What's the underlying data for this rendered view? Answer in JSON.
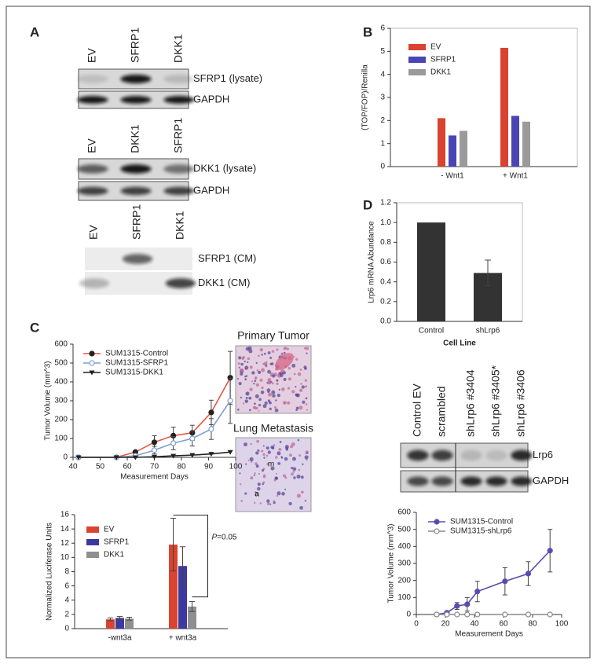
{
  "panel_labels": [
    "A",
    "B",
    "C",
    "D"
  ],
  "blots": [
    {
      "lanes": [
        "EV",
        "SFRP1",
        "DKK1"
      ],
      "rows": [
        "SFRP1 (lysate)",
        "GAPDH"
      ]
    },
    {
      "lanes": [
        "EV",
        "DKK1",
        "SFRP1"
      ],
      "rows": [
        "DKK1 (lysate)",
        "GAPDH"
      ]
    },
    {
      "lanes": [
        "EV",
        "SFRP1",
        "DKK1"
      ],
      "rows": [
        "SFRP1 (CM)",
        "DKK1 (CM)"
      ]
    },
    {
      "lanes": [
        "Control EV",
        "scrambled",
        "shLrp6 #3404",
        "shLrp6 #3405*",
        "shLrp6 #3406"
      ],
      "rows": [
        "Lrp6",
        "GAPDH"
      ]
    }
  ],
  "histology": [
    {
      "title": "Primary Tumor"
    },
    {
      "title": "Lung Metastasis",
      "labels": [
        "m",
        "a"
      ]
    }
  ],
  "chart_data": [
    {
      "type": "bar",
      "ylabel": "(TOP/FOP)/Renilla",
      "categories": [
        "- Wnt1",
        "+ Wnt1"
      ],
      "series": [
        {
          "name": "EV",
          "color": "#d9432f",
          "values": [
            2.1,
            5.15
          ]
        },
        {
          "name": "SFRP1",
          "color": "#4a45b5",
          "values": [
            1.35,
            2.2
          ]
        },
        {
          "name": "DKK1",
          "color": "#9a9a9a",
          "values": [
            1.55,
            1.95
          ]
        }
      ],
      "ylim": [
        0,
        6
      ],
      "yticks": [
        0,
        1,
        2,
        3,
        4,
        5,
        6
      ]
    },
    {
      "type": "bar",
      "ylabel": "Lrp6 mRNA Abundance",
      "xlabel": "Cell Line",
      "categories": [
        "Control",
        "shLrp6"
      ],
      "values": [
        1.0,
        0.49
      ],
      "errors": [
        null,
        0.13
      ],
      "color": "#333333",
      "ylim": [
        0,
        1.2
      ],
      "yticks": [
        {
          "value": 0,
          "label": "0.0"
        },
        0.2,
        0.4,
        0.6,
        0.8,
        {
          "value": 1,
          "label": "1.0"
        },
        1.2
      ]
    },
    {
      "type": "line",
      "ylabel": "Tumor Volume (mm^3)",
      "xlabel": "Measurement Days",
      "x": [
        42,
        56,
        63,
        70,
        77,
        84,
        91,
        98
      ],
      "series": [
        {
          "name": "SUM1315-Control",
          "color": "#e8543f",
          "marker": "filled",
          "values": [
            0,
            0,
            28,
            80,
            115,
            130,
            238,
            422
          ],
          "errors": [
            0,
            0,
            8,
            35,
            45,
            40,
            65,
            140
          ]
        },
        {
          "name": "SUM1315-SFRP1",
          "color": "#7f9fd0",
          "marker": "open",
          "values": [
            0,
            0,
            8,
            38,
            75,
            100,
            150,
            300
          ],
          "errors": [
            0,
            0,
            5,
            20,
            35,
            40,
            55,
            120
          ]
        },
        {
          "name": "SUM1315-DKK1",
          "color": "#222222",
          "marker": "triangle",
          "values": [
            0,
            0,
            0,
            3,
            8,
            12,
            18,
            28
          ]
        }
      ],
      "xlim": [
        40,
        100
      ],
      "xticks": [
        40,
        50,
        60,
        70,
        80,
        90,
        100
      ],
      "ylim": [
        0,
        600
      ],
      "yticks": [
        0,
        100,
        200,
        300,
        400,
        500,
        600
      ]
    },
    {
      "type": "bar",
      "ylabel": "Normalized Luciferase Units",
      "categories": [
        "-wnt3a",
        "+ wnt3a"
      ],
      "series": [
        {
          "name": "EV",
          "color": "#d9432f",
          "values": [
            1.3,
            11.8
          ],
          "errors": [
            0.2,
            3.7
          ]
        },
        {
          "name": "SFRP1",
          "color": "#3c3a9e",
          "values": [
            1.5,
            8.8
          ],
          "errors": [
            0.2,
            2.7
          ]
        },
        {
          "name": "DKK1",
          "color": "#8f8f8f",
          "values": [
            1.4,
            3.1
          ],
          "errors": [
            0.2,
            0.7
          ]
        }
      ],
      "annotation": "P=0.05",
      "ylim": [
        0,
        16
      ],
      "yticks": [
        0,
        2,
        4,
        6,
        8,
        10,
        12,
        14,
        16
      ]
    },
    {
      "type": "line",
      "ylabel": "Tumor Volume (mm^3)",
      "xlabel": "Measurement Days",
      "x": [
        14,
        21,
        28,
        35,
        42,
        61,
        77,
        92
      ],
      "series": [
        {
          "name": "SUM1315-Control",
          "color": "#5b4bb0",
          "marker": "filled",
          "values": [
            0,
            10,
            50,
            60,
            135,
            195,
            240,
            375
          ],
          "errors": [
            0,
            5,
            20,
            40,
            60,
            80,
            70,
            125
          ]
        },
        {
          "name": "SUM1315-shLrp6",
          "color": "#888888",
          "marker": "open",
          "values": [
            0,
            0,
            0,
            0,
            0,
            0,
            0,
            0
          ]
        }
      ],
      "xlim": [
        0,
        100
      ],
      "xticks": [
        0,
        20,
        40,
        60,
        80,
        100
      ],
      "ylim": [
        0,
        600
      ],
      "yticks": [
        0,
        100,
        200,
        300,
        400,
        500,
        600
      ]
    }
  ]
}
